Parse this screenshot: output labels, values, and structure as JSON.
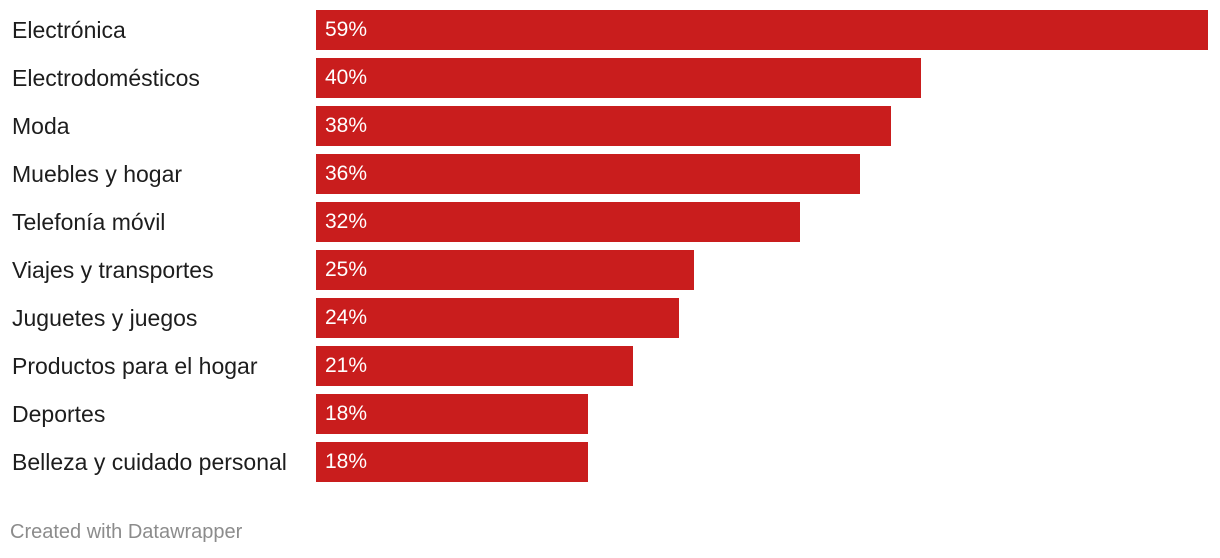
{
  "chart_data": {
    "type": "bar",
    "orientation": "horizontal",
    "categories": [
      "Electrónica",
      "Electrodomésticos",
      "Moda",
      "Muebles y hogar",
      "Telefonía móvil",
      "Viajes y transportes",
      "Juguetes y juegos",
      "Productos para el hogar",
      "Deportes",
      "Belleza y cuidado personal"
    ],
    "values": [
      59,
      40,
      38,
      36,
      32,
      25,
      24,
      21,
      18,
      18
    ],
    "value_labels": [
      "59%",
      "40%",
      "38%",
      "36%",
      "32%",
      "25%",
      "24%",
      "21%",
      "18%",
      "18%"
    ],
    "xlim": [
      0,
      59
    ],
    "grid": false,
    "bar_color": "#c91d1d"
  },
  "footer": {
    "credit": "Created with Datawrapper"
  }
}
